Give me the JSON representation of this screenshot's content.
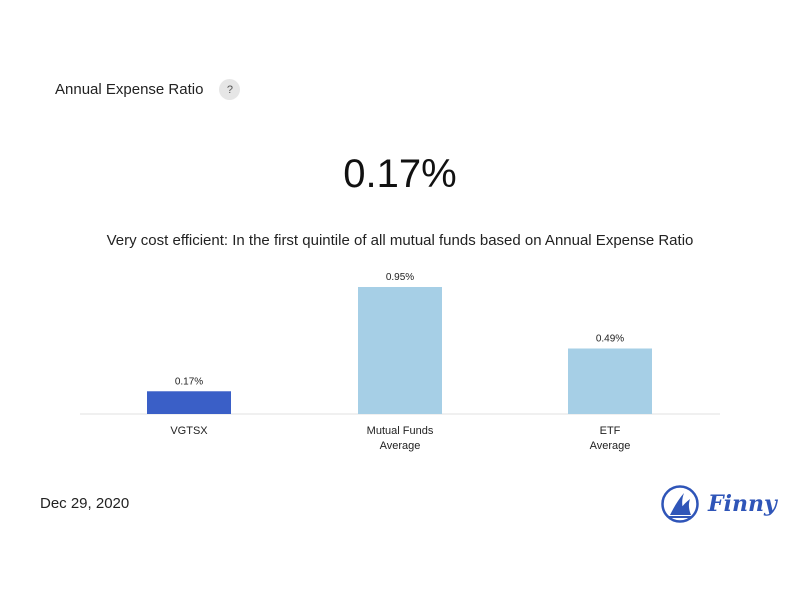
{
  "header": {
    "title": "Annual Expense Ratio",
    "help_label": "?"
  },
  "main": {
    "value": "0.17%",
    "description": "Very cost efficient: In the first quintile of all mutual funds based on Annual Expense Ratio"
  },
  "chart_data": {
    "type": "bar",
    "categories": [
      [
        "VGTSX"
      ],
      [
        "Mutual Funds",
        "Average"
      ],
      [
        "ETF",
        "Average"
      ]
    ],
    "values": [
      0.17,
      0.95,
      0.49
    ],
    "value_labels": [
      "0.17%",
      "0.95%",
      "0.49%"
    ],
    "colors": [
      "#3a5fc7",
      "#a6cfe6",
      "#a6cfe6"
    ],
    "ylim": [
      0,
      0.95
    ],
    "grid": false
  },
  "footer": {
    "date": "Dec 29, 2020",
    "brand": "Finny"
  }
}
